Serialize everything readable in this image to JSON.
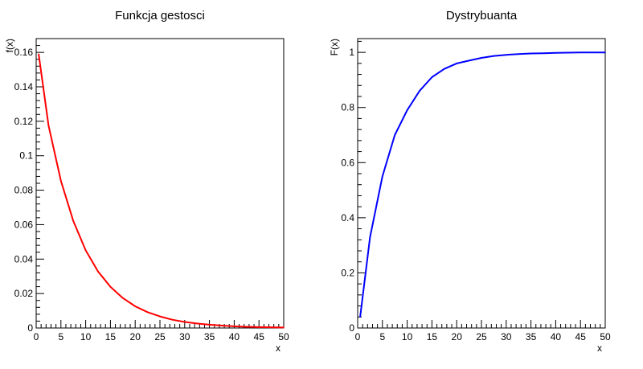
{
  "chart_data": [
    {
      "type": "line",
      "title": "Funkcja gestosci",
      "xlabel": "x",
      "ylabel": "f(x)",
      "xlim": [
        0,
        50
      ],
      "ylim": [
        0,
        0.168
      ],
      "x_ticks": [
        0,
        5,
        10,
        15,
        20,
        25,
        30,
        35,
        40,
        45,
        50
      ],
      "y_ticks": [
        0,
        0.02,
        0.04,
        0.06,
        0.08,
        0.1,
        0.12,
        0.14,
        0.16
      ],
      "x_tick_labels": [
        "0",
        "5",
        "10",
        "15",
        "20",
        "25",
        "30",
        "35",
        "40",
        "45",
        "50"
      ],
      "y_tick_labels": [
        "0",
        "0.02",
        "0.04",
        "0.06",
        "0.08",
        "0.1",
        "0.12",
        "0.14",
        "0.16"
      ],
      "grid": false,
      "color": "#ff0000",
      "x": [
        0.5,
        2.5,
        5,
        7.5,
        10,
        12.5,
        15,
        17.5,
        20,
        22.5,
        25,
        27.5,
        30,
        32.5,
        35,
        37.5,
        40,
        42.5,
        45,
        47.5,
        50
      ],
      "y": [
        0.159,
        0.1175,
        0.0854,
        0.0621,
        0.0451,
        0.0328,
        0.0239,
        0.0174,
        0.0126,
        0.0092,
        0.0067,
        0.0048,
        0.0035,
        0.0026,
        0.0019,
        0.0014,
        0.001,
        0.0007,
        0.0005,
        0.0004,
        0.0003
      ]
    },
    {
      "type": "line",
      "title": "Dystrybuanta",
      "xlabel": "x",
      "ylabel": "F(x)",
      "xlim": [
        0,
        50
      ],
      "ylim": [
        0,
        1.05
      ],
      "x_ticks": [
        0,
        5,
        10,
        15,
        20,
        25,
        30,
        35,
        40,
        45,
        50
      ],
      "y_ticks": [
        0,
        0.2,
        0.4,
        0.6,
        0.8,
        1
      ],
      "x_tick_labels": [
        "0",
        "5",
        "10",
        "15",
        "20",
        "25",
        "30",
        "35",
        "40",
        "45",
        "50"
      ],
      "y_tick_labels": [
        "0",
        "0.2",
        "0.4",
        "0.6",
        "0.8",
        "1"
      ],
      "grid": false,
      "color": "#0000ff",
      "x": [
        0.5,
        2.5,
        5,
        7.5,
        10,
        12.5,
        15,
        17.5,
        20,
        22.5,
        25,
        27.5,
        30,
        32.5,
        35,
        37.5,
        40,
        42.5,
        45,
        47.5,
        50
      ],
      "y": [
        0.04,
        0.33,
        0.55,
        0.7,
        0.79,
        0.86,
        0.91,
        0.94,
        0.96,
        0.97,
        0.98,
        0.987,
        0.991,
        0.994,
        0.996,
        0.997,
        0.998,
        0.999,
        0.9995,
        0.9997,
        0.9998
      ]
    }
  ]
}
